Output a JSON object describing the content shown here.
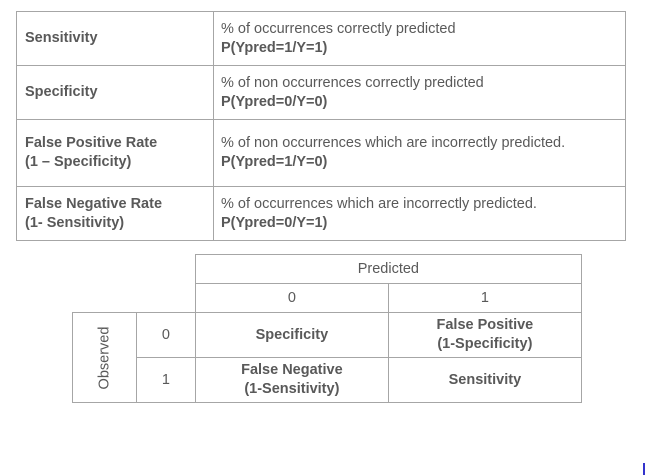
{
  "definitions": [
    {
      "term": [
        "Sensitivity"
      ],
      "description": "% of occurrences correctly predicted",
      "probability": "P(Ypred=1/Y=1)"
    },
    {
      "term": [
        "Specificity"
      ],
      "description": "% of non occurrences correctly predicted",
      "probability": "P(Ypred=0/Y=0)"
    },
    {
      "term": [
        "False Positive Rate",
        "(1 – Specificity)"
      ],
      "description": "% of non occurrences which are incorrectly predicted.",
      "probability": "P(Ypred=1/Y=0)"
    },
    {
      "term": [
        "False Negative Rate",
        "(1- Sensitivity)"
      ],
      "description": "% of occurrences which are incorrectly predicted.",
      "probability": "P(Ypred=0/Y=1)"
    }
  ],
  "matrix": {
    "predicted_label": "Predicted",
    "observed_label": "Observed",
    "predicted_values": [
      "0",
      "1"
    ],
    "observed_values": [
      "0",
      "1"
    ],
    "cells": [
      [
        [
          "Specificity"
        ],
        [
          "False Positive",
          "(1-Specificity)"
        ]
      ],
      [
        [
          "False Negative",
          "(1-Sensitivity)"
        ],
        [
          "Sensitivity"
        ]
      ]
    ]
  },
  "colors": {
    "text": "#595959",
    "border": "#a6a6a6",
    "corner_mark": "#3333cc"
  }
}
